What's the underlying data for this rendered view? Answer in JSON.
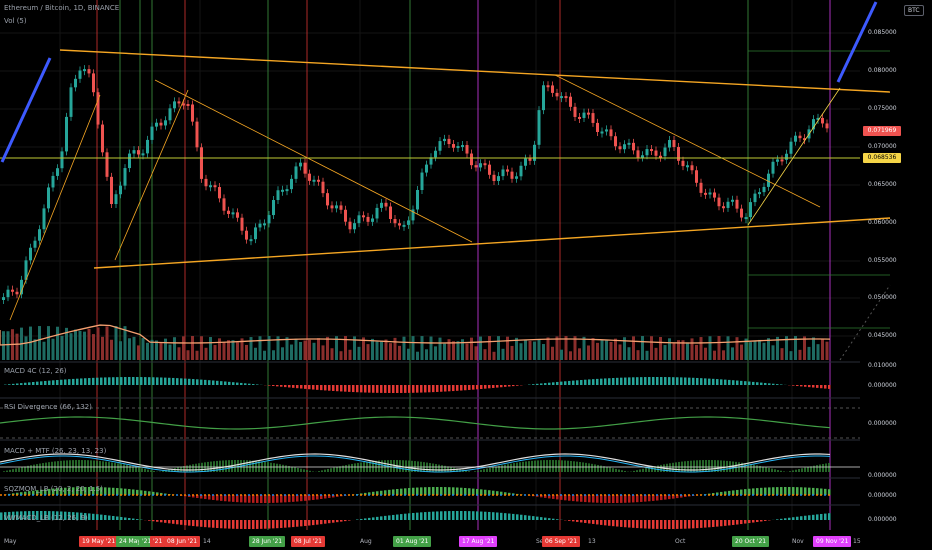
{
  "header": {
    "title": "Ethereum / Bitcoin, 1D, BINANCE",
    "volume_label": "Vol (5)",
    "currency_button": "BTC"
  },
  "indicators": [
    {
      "label": "MACD 4C (12, 26)"
    },
    {
      "label": "RSI Divergence (66, 132)"
    },
    {
      "label": "MACD + MTF (26, 23, 13, 23)"
    },
    {
      "label": "SQZMOM_LB (20, 2, 20, 1.5)"
    },
    {
      "label": "VWMACD_LB (12, 26, 9)"
    }
  ],
  "price_axis": {
    "labels": [
      "0.085000",
      "0.080000",
      "0.075000",
      "0.070000",
      "0.065000",
      "0.060000",
      "0.055000",
      "0.050000",
      "0.045000"
    ],
    "indicator_labels": [
      "0.010000",
      "0.000000",
      "0.000000",
      "0.000000",
      "0.000000",
      "0.000000"
    ],
    "current_price": "0.071969",
    "current_price_color": "#ef5350",
    "level_price": "0.068536",
    "level_price_color": "#f5d547"
  },
  "time_axis": {
    "ticks": [
      {
        "text": "May"
      },
      {
        "text": "14"
      },
      {
        "text": "Aug"
      },
      {
        "text": "Se"
      },
      {
        "text": "13"
      },
      {
        "text": "Oct"
      },
      {
        "text": "Nov"
      },
      {
        "text": "15"
      }
    ],
    "badges": [
      {
        "text": "19 May '21",
        "color": "#e53935"
      },
      {
        "text": "24 May '21",
        "color": "#43a047"
      },
      {
        "text": "'21",
        "color": "#43a047"
      },
      {
        "text": "'21",
        "color": "#e53935"
      },
      {
        "text": "08 Jun '21",
        "color": "#e53935"
      },
      {
        "text": "28 Jun '21",
        "color": "#43a047"
      },
      {
        "text": "08 Jul '21",
        "color": "#e53935"
      },
      {
        "text": "01 Aug '21",
        "color": "#43a047"
      },
      {
        "text": "17 Aug '21",
        "color": "#e040fb"
      },
      {
        "text": "06 Sep '21",
        "color": "#e53935"
      },
      {
        "text": "20 Oct '21",
        "color": "#43a047"
      },
      {
        "text": "09 Nov '21",
        "color": "#e040fb"
      }
    ]
  },
  "colors": {
    "up": "#26a69a",
    "down": "#ef5350",
    "trendline": "#f5a623",
    "breakout": "#3d5afe",
    "horizontal": "#c0ca33"
  }
}
